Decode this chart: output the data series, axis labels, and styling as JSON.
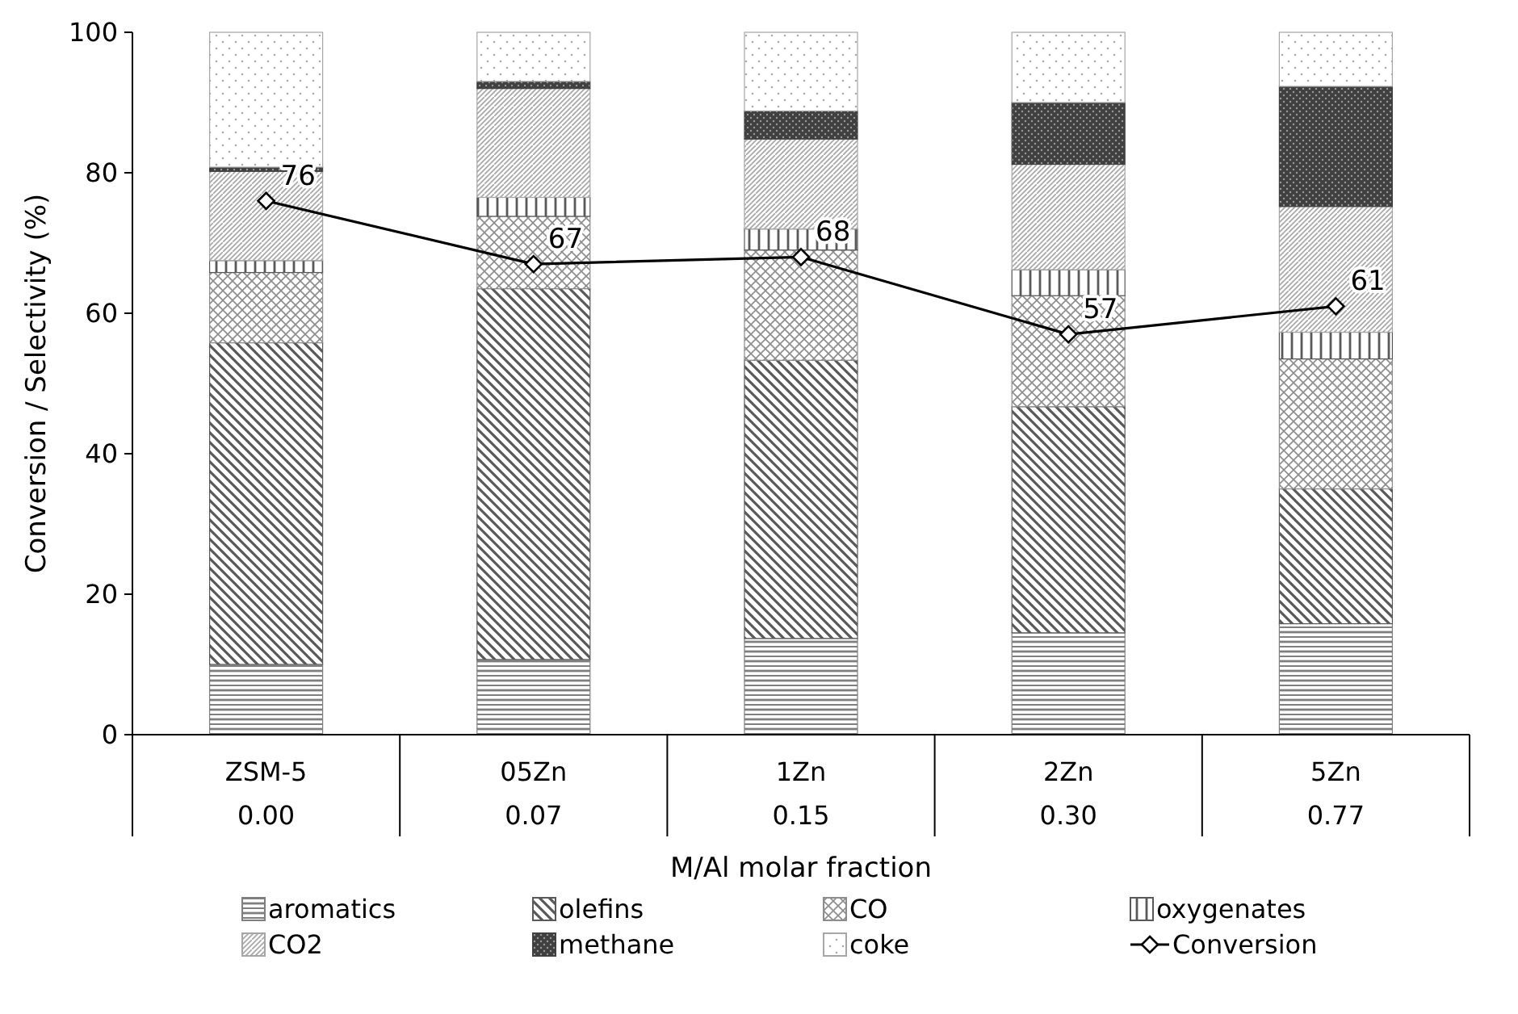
{
  "chart_data": {
    "type": "bar",
    "stacked": true,
    "ylabel": "Conversion / Selectivity (%)",
    "xlabel": "M/Al molar fraction",
    "categories": [
      "ZSM-5",
      "05Zn",
      "1Zn",
      "2Zn",
      "5Zn"
    ],
    "ylim": [
      0,
      100
    ],
    "yticks": [
      0,
      20,
      40,
      60,
      80,
      100
    ],
    "grid": false,
    "legend": "bottom",
    "series": [
      {
        "name": "aromatics",
        "color": "#7f7f7f",
        "values": [
          10,
          10.7,
          13.7,
          14.5,
          15.8
        ]
      },
      {
        "name": "olefins",
        "color": "#595959",
        "values": [
          45.8,
          52.8,
          39.6,
          32.2,
          19.2
        ]
      },
      {
        "name": "CO",
        "color": "#8c8c8c",
        "values": [
          10,
          10.3,
          15.7,
          15.8,
          18.5
        ]
      },
      {
        "name": "oxygenates",
        "color": "#595959",
        "values": [
          1.7,
          2.7,
          3,
          3.7,
          3.8
        ]
      },
      {
        "name": "CO2",
        "color": "#a6a6a6",
        "values": [
          12.7,
          15.5,
          12.8,
          15,
          17.9
        ]
      },
      {
        "name": "methane",
        "color": "#404040",
        "values": [
          0.6,
          1,
          4,
          8.8,
          17.1
        ]
      },
      {
        "name": "coke",
        "color": "#a6a6a6",
        "values": [
          19.2,
          7,
          11.2,
          10,
          7.7
        ]
      },
      {
        "name": "Conversion",
        "type": "line",
        "color": "#000000",
        "marker": "diamond",
        "data_labels": true,
        "values": [
          76,
          67,
          68,
          57,
          61
        ]
      }
    ],
    "annotations": [
      "0.00",
      "0.07",
      "0.15",
      "0.30",
      "0.77"
    ]
  }
}
